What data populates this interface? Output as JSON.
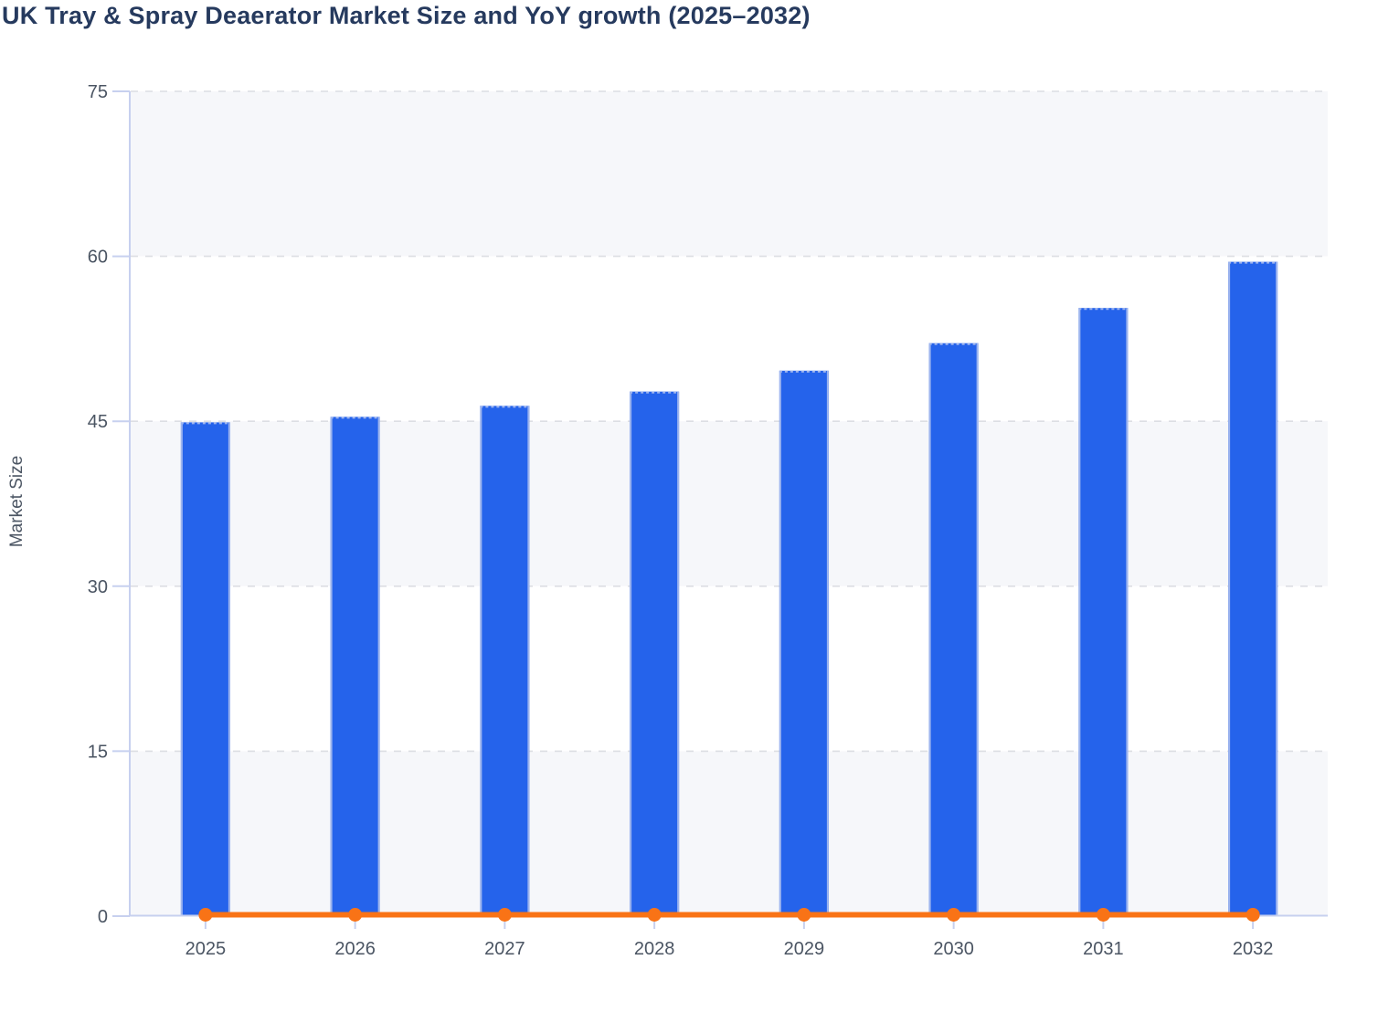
{
  "chart_data": {
    "type": "bar",
    "title": "UK Tray & Spray Deaerator Market Size and YoY growth (2025–2032)",
    "ylabel": "Market Size",
    "xlabel": "",
    "categories": [
      "2025",
      "2026",
      "2027",
      "2028",
      "2029",
      "2030",
      "2031",
      "2032"
    ],
    "series": [
      {
        "name": "Market Size",
        "type": "bar",
        "values": [
          44.9,
          45.4,
          46.4,
          47.7,
          49.6,
          52.1,
          55.3,
          59.5
        ]
      },
      {
        "name": "YoY growth",
        "type": "line",
        "values": [
          0,
          0,
          0,
          0,
          0,
          0,
          0,
          0
        ]
      }
    ],
    "ylim": [
      0,
      75
    ],
    "yticks": [
      0,
      15,
      30,
      45,
      60,
      75
    ],
    "grid": "dashed-horizontal",
    "legend_position": "none",
    "band_fill": "alternating",
    "colors": {
      "bar_fill": "#2563eb",
      "bar_border": "#9db4ee",
      "line": "#f97316",
      "marker": "#f97316",
      "axis": "#c7d0ef",
      "gridline": "#dcdee3",
      "band": "#f6f7fa",
      "tick_label": "#4b5563",
      "title": "#263a5e"
    }
  }
}
